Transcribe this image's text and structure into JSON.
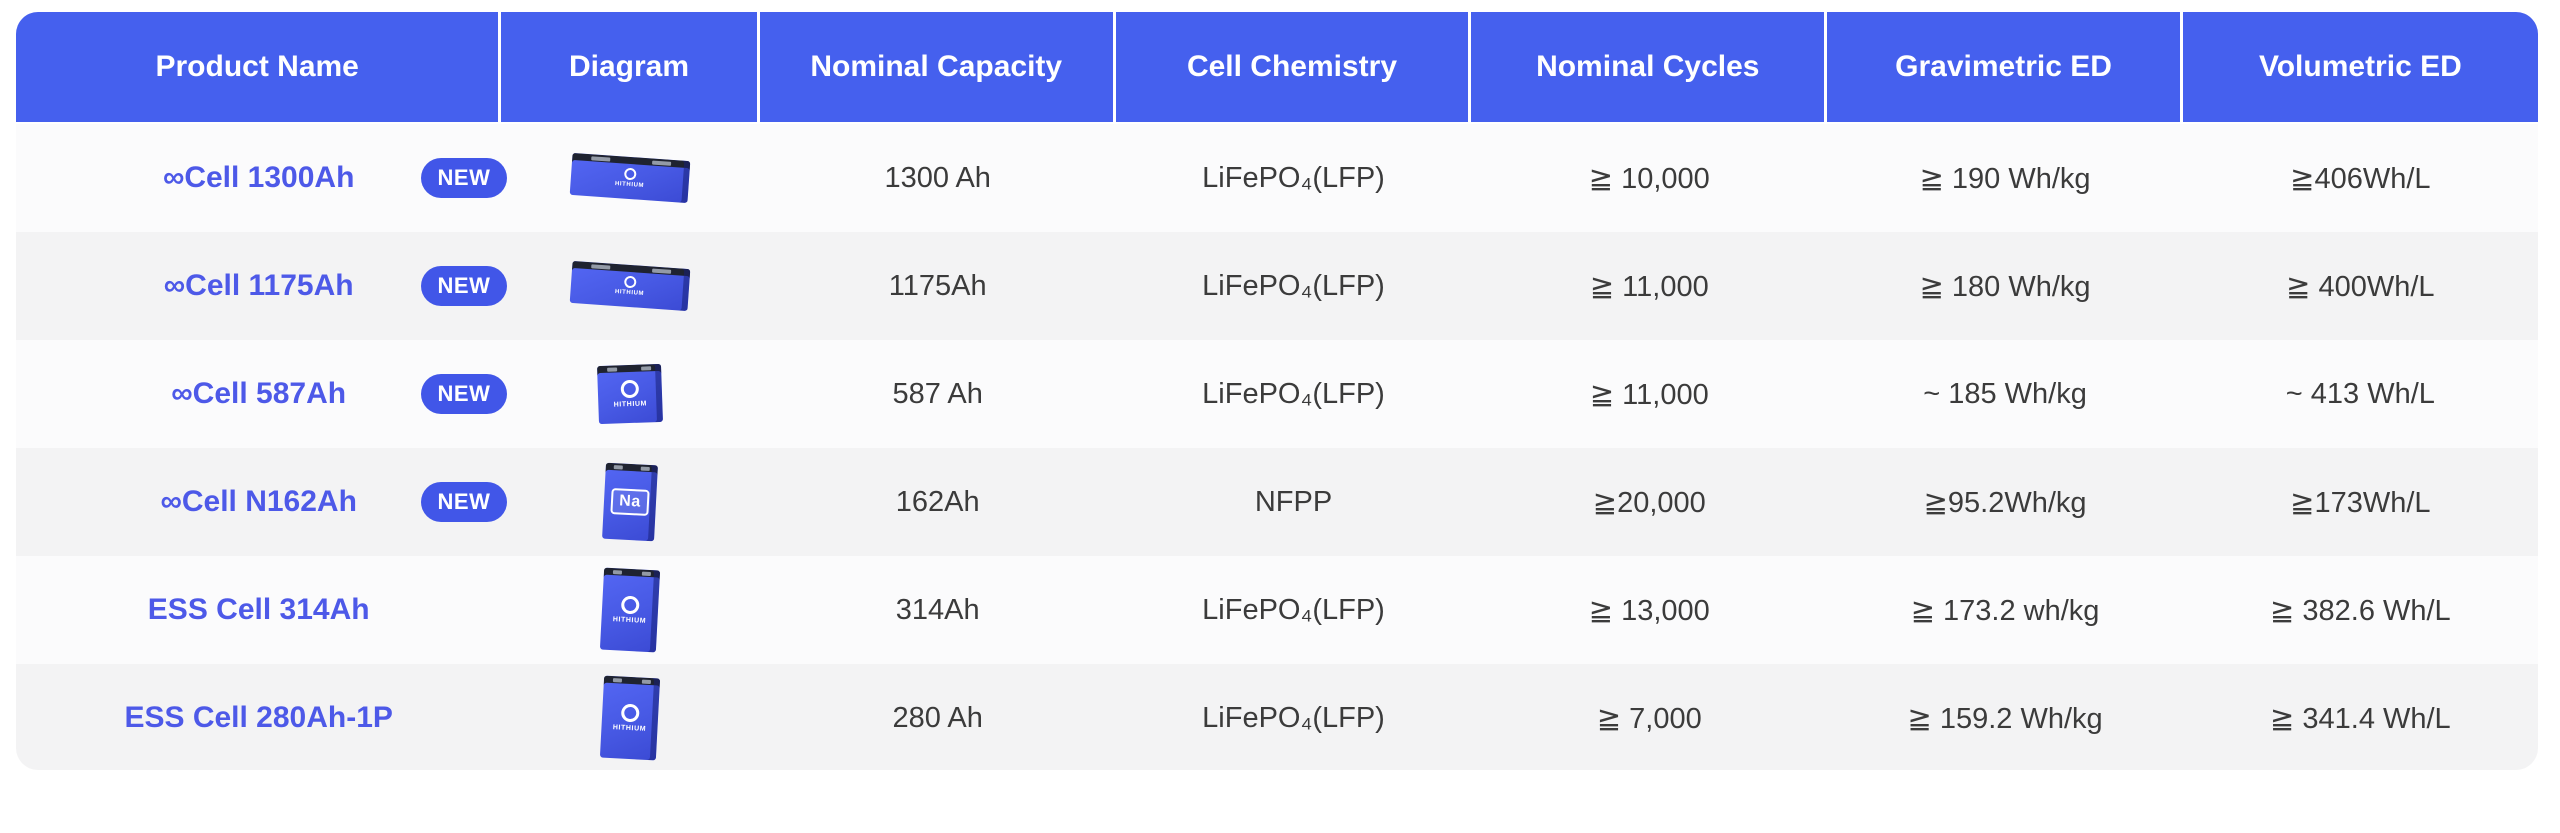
{
  "colors": {
    "header_bg": "#4560EE",
    "badge_bg": "#4156E8",
    "product_link": "#4D59E8",
    "battery_front": "#4759E4",
    "row_odd_bg": "#F3F3F4",
    "row_even_bg": "#FBFBFC"
  },
  "table": {
    "columns": [
      "Product Name",
      "Diagram",
      "Nominal Capacity",
      "Cell Chemistry",
      "Nominal Cycles",
      "Gravimetric ED",
      "Volumetric ED"
    ],
    "rows": [
      {
        "name": "∞Cell 1300Ah",
        "badge": "NEW",
        "diagram": "wide",
        "diagram_label": "HITHIUM",
        "capacity": "1300 Ah",
        "chemistry": "LiFePO₄(LFP)",
        "cycles": "≧ 10,000",
        "gravimetric": "≧ 190 Wh/kg",
        "volumetric": "≧406Wh/L"
      },
      {
        "name": "∞Cell 1175Ah",
        "badge": "NEW",
        "diagram": "wide",
        "diagram_label": "HITHIUM",
        "capacity": "1175Ah",
        "chemistry": "LiFePO₄(LFP)",
        "cycles": "≧ 11,000",
        "gravimetric": "≧ 180 Wh/kg",
        "volumetric": "≧ 400Wh/L"
      },
      {
        "name": "∞Cell 587Ah",
        "badge": "NEW",
        "diagram": "square",
        "diagram_label": "HITHIUM",
        "capacity": "587 Ah",
        "chemistry": "LiFePO₄(LFP)",
        "cycles": "≧ 11,000",
        "gravimetric": "~ 185 Wh/kg",
        "volumetric": "~ 413 Wh/L"
      },
      {
        "name": "∞Cell N162Ah",
        "badge": "NEW",
        "diagram": "tall-na",
        "diagram_label": "Na",
        "capacity": "162Ah",
        "chemistry": "NFPP",
        "cycles": "≧20,000",
        "gravimetric": "≧95.2Wh/kg",
        "volumetric": "≧173Wh/L"
      },
      {
        "name": "ESS Cell 314Ah",
        "diagram": "tall",
        "diagram_label": "HITHIUM",
        "capacity": "314Ah",
        "chemistry": "LiFePO₄(LFP)",
        "cycles": "≧ 13,000",
        "gravimetric": "≧ 173.2 wh/kg",
        "volumetric": "≧ 382.6 Wh/L"
      },
      {
        "name": "ESS Cell 280Ah-1P",
        "diagram": "tall",
        "diagram_label": "HITHIUM",
        "capacity": "280 Ah",
        "chemistry": "LiFePO₄(LFP)",
        "cycles": "≧ 7,000",
        "gravimetric": "≧ 159.2 Wh/kg",
        "volumetric": "≧ 341.4 Wh/L"
      }
    ]
  }
}
